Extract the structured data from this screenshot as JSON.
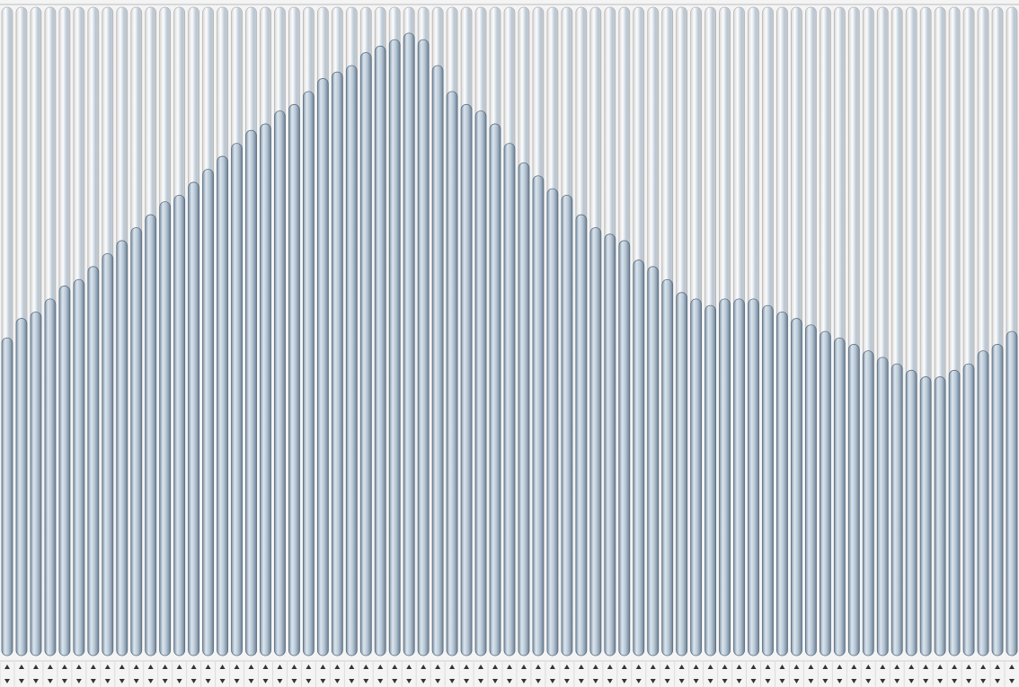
{
  "sliders": {
    "range": [
      0,
      100
    ],
    "fill_color": "#b9c8d6",
    "values": [
      49,
      52,
      53,
      55,
      57,
      58,
      60,
      62,
      64,
      66,
      68,
      70,
      71,
      73,
      75,
      77,
      79,
      81,
      82,
      84,
      85,
      87,
      89,
      90,
      91,
      93,
      94,
      95,
      96,
      95,
      91,
      87,
      85,
      84,
      82,
      79,
      76,
      74,
      72,
      71,
      68,
      66,
      65,
      64,
      61,
      60,
      58,
      56,
      55,
      54,
      55,
      55,
      55,
      54,
      53,
      52,
      51,
      50,
      49,
      48,
      47,
      46,
      45,
      44,
      43,
      43,
      44,
      45,
      47,
      48,
      50
    ]
  }
}
